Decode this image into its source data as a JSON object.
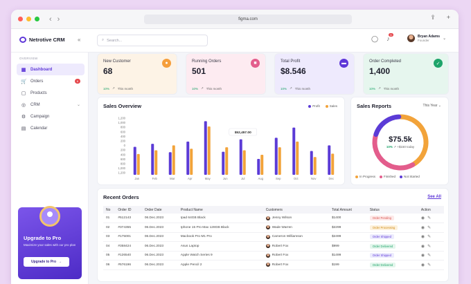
{
  "browser": {
    "url": "figma.com"
  },
  "app": {
    "name": "Netrotive CRM"
  },
  "search": {
    "placeholder": "Search..."
  },
  "topbar": {
    "bell_badge": "6"
  },
  "user": {
    "name": "Bryan Adams",
    "role": "Founder"
  },
  "sidebar": {
    "section": "OVERVIEW",
    "items": [
      {
        "label": "Dashboard",
        "icon": "dashboard-icon"
      },
      {
        "label": "Orders",
        "icon": "cart-icon",
        "badge": "6"
      },
      {
        "label": "Products",
        "icon": "box-icon"
      },
      {
        "label": "CRM",
        "icon": "crm-icon"
      },
      {
        "label": "Campaign",
        "icon": "campaign-icon"
      },
      {
        "label": "Calendar",
        "icon": "calendar-icon"
      }
    ]
  },
  "promo": {
    "title": "Upgrade to Pro",
    "text": "Maximize your sales with our pro plan",
    "button": "Upgrade to Pro"
  },
  "stats": [
    {
      "label": "New Customer",
      "value": "68",
      "change": "10%",
      "period": "This month",
      "color": "#f59e3b",
      "bg": "#fdf3e6"
    },
    {
      "label": "Running Orders",
      "value": "501",
      "change": "10%",
      "period": "This month",
      "color": "#e35d8c",
      "bg": "#fdebf1"
    },
    {
      "label": "Total Profit",
      "value": "$8.546",
      "change": "10%",
      "period": "This month",
      "color": "#5e37d8",
      "bg": "#eeeafd"
    },
    {
      "label": "Order Completed",
      "value": "1,400",
      "change": "10%",
      "period": "This month",
      "color": "#1ea46a",
      "bg": "#e6f6ee"
    }
  ],
  "sales_overview": {
    "title": "Sales Overview",
    "tooltip": "$52,457.00",
    "colors": {
      "profit": "#5b3bd6",
      "sales": "#f2a33a"
    }
  },
  "chart_data": {
    "type": "bar",
    "title": "Sales Overview",
    "categories": [
      "Jan",
      "Feb",
      "Mar",
      "Apr",
      "May",
      "Jun",
      "Jul",
      "Aug",
      "Sep",
      "Oct",
      "Nov",
      "Dec"
    ],
    "yticks": [
      "1,200",
      "1,000",
      "800",
      "600",
      "400",
      "200",
      "0",
      "200",
      "400",
      "600",
      "800",
      "1,000",
      "1,200"
    ],
    "series": [
      {
        "name": "Profit",
        "values": [
          740,
          820,
          600,
          880,
          1420,
          610,
          940,
          420,
          980,
          1250,
          630,
          780
        ]
      },
      {
        "name": "Sales",
        "values": [
          550,
          650,
          780,
          690,
          1280,
          730,
          650,
          530,
          730,
          880,
          470,
          560
        ]
      }
    ]
  },
  "sales_reports": {
    "title": "Sales Reports",
    "period": "This Year",
    "value": "$75.5k",
    "change": "10%",
    "change_text": "+$150 today",
    "legend": [
      "In Progress",
      "Finished",
      "Not Started"
    ],
    "shares": [
      0.42,
      0.38,
      0.2
    ],
    "colors": [
      "#f2a33a",
      "#e35d8c",
      "#5b3bd6"
    ]
  },
  "recent_orders": {
    "title": "Recent Orders",
    "see_all": "See All",
    "columns": [
      "No",
      "Order ID",
      "Order Date",
      "Product Name",
      "Customers",
      "Total Amount",
      "Status",
      "Action"
    ],
    "rows": [
      {
        "no": "01",
        "id": "#512143",
        "date": "06.Dec.2023",
        "product": "Ipad 64GB Black",
        "customer": "Jenny Wilson",
        "amount": "$1400",
        "status": "Order Pending",
        "cls": "pending"
      },
      {
        "no": "02",
        "id": "#374355",
        "date": "06.Dec.2023",
        "product": "Iphone 15 Pro Max 128GB Black",
        "customer": "Wade Warren",
        "amount": "$2299",
        "status": "Order Processing",
        "cls": "processing"
      },
      {
        "no": "03",
        "id": "#175001",
        "date": "06.Dec.2023",
        "product": "Macbook Pro M1 Pro",
        "customer": "Cameron Williamson",
        "amount": "$2499",
        "status": "Order Shipped",
        "cls": "shipped"
      },
      {
        "no": "04",
        "id": "#358424",
        "date": "06.Dec.2023",
        "product": "Asus Laptop",
        "customer": "Robert Fox",
        "amount": "$999",
        "status": "Order Delivered",
        "cls": "delivered"
      },
      {
        "no": "05",
        "id": "#126540",
        "date": "06.Dec.2023",
        "product": "Apple Watch Series 9",
        "customer": "Robert Fox",
        "amount": "$1499",
        "status": "Order Shipped",
        "cls": "shipped"
      },
      {
        "no": "06",
        "id": "#576196",
        "date": "06.Dec.2023",
        "product": "Apple Pencil 2",
        "customer": "Robert Fox",
        "amount": "$199",
        "status": "Order Delivered",
        "cls": "delivered"
      }
    ]
  }
}
